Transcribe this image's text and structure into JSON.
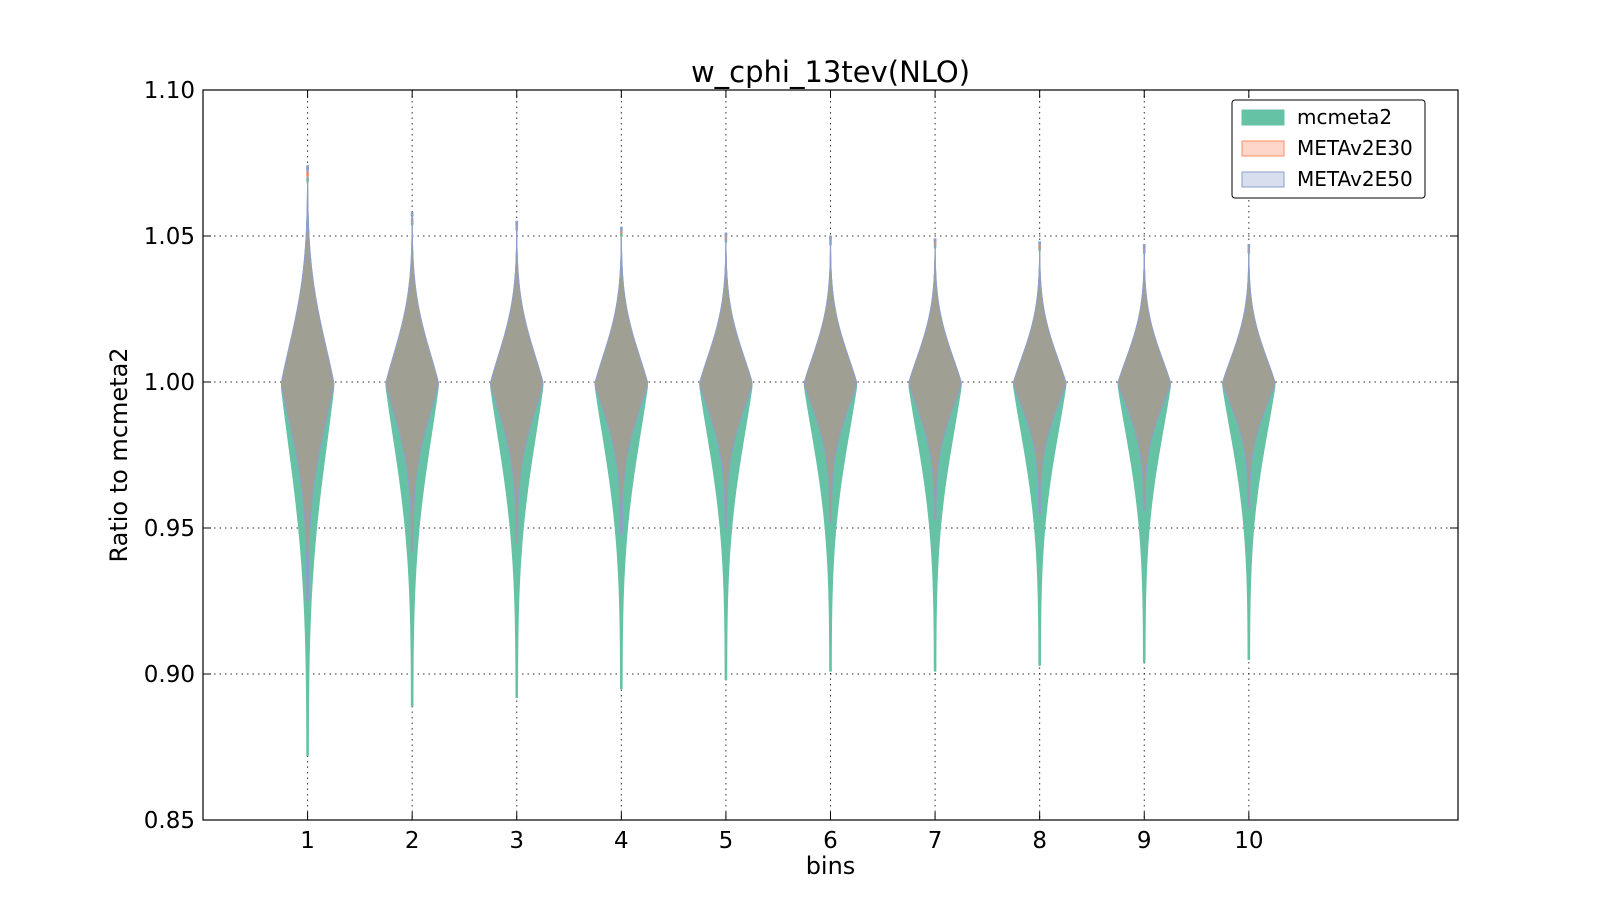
{
  "chart_data": {
    "type": "violin",
    "title": "w_cphi_13tev(NLO)",
    "xlabel": "bins",
    "ylabel": "Ratio to mcmeta2",
    "categories": [
      "1",
      "2",
      "3",
      "4",
      "5",
      "6",
      "7",
      "8",
      "9",
      "10"
    ],
    "x": [
      1,
      2,
      3,
      4,
      5,
      6,
      7,
      8,
      9,
      10
    ],
    "xlim": [
      -0.0,
      12.0
    ],
    "ylim": [
      0.85,
      1.1
    ],
    "yticks": [
      "0.85",
      "0.90",
      "0.95",
      "1.00",
      "1.05",
      "1.10"
    ],
    "grid": true,
    "legend_position": "top-right",
    "series": [
      {
        "name": "mcmeta2",
        "fill_color": "#66c2a5",
        "edge_color": "#66c2a5",
        "min": [
          0.872,
          0.889,
          0.892,
          0.895,
          0.898,
          0.901,
          0.901,
          0.903,
          0.904,
          0.905
        ],
        "max": [
          1.07,
          1.055,
          1.053,
          1.051,
          1.049,
          1.048,
          1.047,
          1.046,
          1.045,
          1.045
        ],
        "center": [
          1.0,
          1.0,
          1.0,
          1.0,
          1.0,
          1.0,
          1.0,
          1.0,
          1.0,
          1.0
        ]
      },
      {
        "name": "METAv2E30",
        "fill_color": "#fc8d62",
        "edge_color": "#fc8d62",
        "min": [
          0.925,
          0.942,
          0.945,
          0.948,
          0.95,
          0.952,
          0.953,
          0.955,
          0.956,
          0.957
        ],
        "max": [
          1.072,
          1.056,
          1.054,
          1.052,
          1.05,
          1.049,
          1.048,
          1.047,
          1.046,
          1.046
        ],
        "center": [
          1.0,
          1.0,
          1.0,
          1.0,
          1.0,
          1.0,
          1.0,
          1.0,
          1.0,
          1.0
        ]
      },
      {
        "name": "METAv2E50",
        "fill_color": "#8da0cb",
        "edge_color": "#8da0cb",
        "min": [
          0.925,
          0.942,
          0.945,
          0.948,
          0.95,
          0.952,
          0.953,
          0.955,
          0.956,
          0.957
        ],
        "max": [
          1.074,
          1.058,
          1.055,
          1.053,
          1.051,
          1.05,
          1.049,
          1.048,
          1.047,
          1.047
        ],
        "center": [
          1.0,
          1.0,
          1.0,
          1.0,
          1.0,
          1.0,
          1.0,
          1.0,
          1.0,
          1.0
        ]
      }
    ],
    "overlap_fill_color": "#a09e91"
  }
}
